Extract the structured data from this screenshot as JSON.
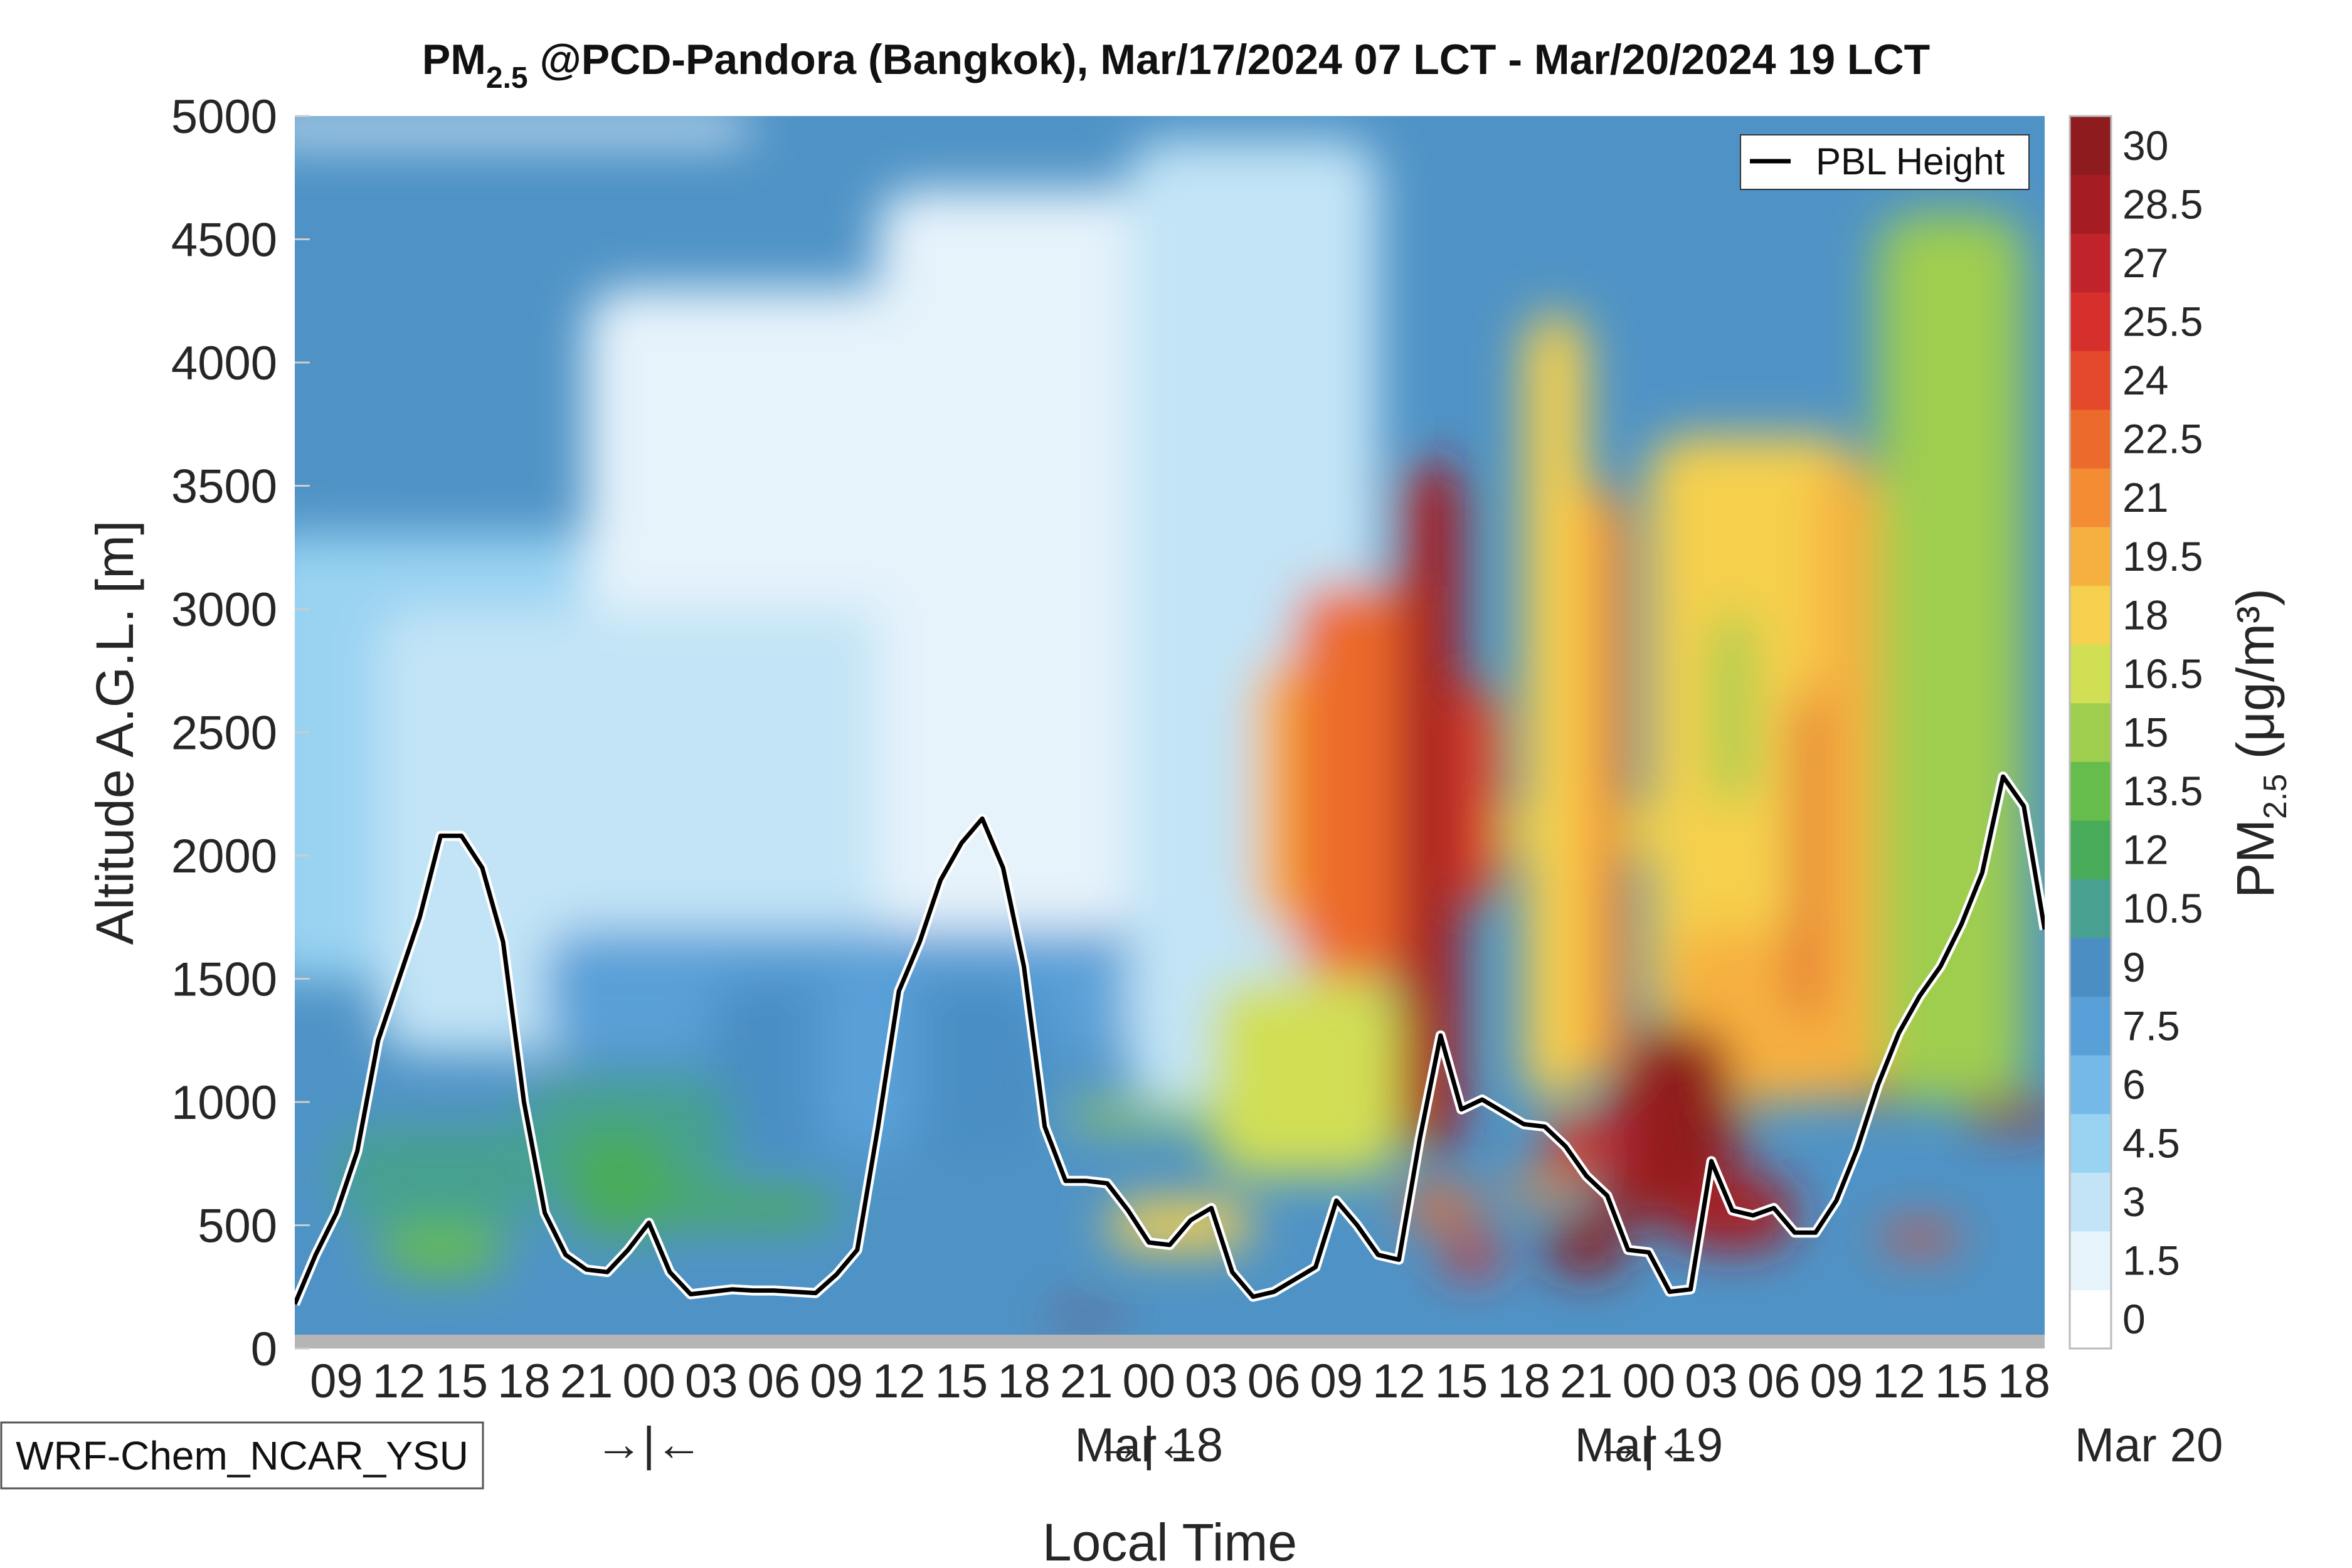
{
  "chart_data": {
    "type": "heatmap",
    "title_parts": {
      "prefix": "PM",
      "sub": "2.5",
      "rest": " @PCD-Pandora (Bangkok), Mar/17/2024 07 LCT - Mar/20/2024 19 LCT"
    },
    "xlabel": "Local Time",
    "ylabel": "Altitude A.G.L. [m]",
    "ylim": [
      0,
      5000
    ],
    "y_ticks": [
      "0",
      "500",
      "1000",
      "1500",
      "2000",
      "2500",
      "3000",
      "3500",
      "4000",
      "4500",
      "5000"
    ],
    "x_range_hours": [
      0,
      84
    ],
    "hour_tick_labels": [
      "09",
      "12",
      "15",
      "18",
      "21",
      "00",
      "03",
      "06",
      "09",
      "12",
      "15",
      "18",
      "21",
      "00",
      "03",
      "06",
      "09",
      "12",
      "15",
      "18",
      "21",
      "00",
      "03",
      "06",
      "09",
      "12",
      "15",
      "18"
    ],
    "day_labels": [
      {
        "text": "Mar 18",
        "hour": 41
      },
      {
        "text": "Mar 19",
        "hour": 65
      },
      {
        "text": "Mar 20",
        "hour": 89
      }
    ],
    "day_separators": [
      {
        "text": "→|←",
        "hour": 17
      },
      {
        "text": "→|←",
        "hour": 41
      },
      {
        "text": "→|←",
        "hour": 65
      }
    ],
    "colorbar": {
      "label_parts": {
        "prefix": "PM",
        "sub": "2.5",
        "units": " (μg/m³)"
      },
      "levels": [
        "0",
        "1.5",
        "3",
        "4.5",
        "6",
        "7.5",
        "9",
        "10.5",
        "12",
        "13.5",
        "15",
        "16.5",
        "18",
        "19.5",
        "21",
        "22.5",
        "24",
        "25.5",
        "27",
        "28.5",
        "30"
      ],
      "colors": [
        "#ffffff",
        "#e6f3fb",
        "#c2e4f6",
        "#99d3f2",
        "#74b9e8",
        "#5aa0d8",
        "#4a8ec4",
        "#47a090",
        "#48ab5a",
        "#66bd4b",
        "#9fce4f",
        "#d1df55",
        "#f6d04e",
        "#f6b040",
        "#f48c34",
        "#ec6a2c",
        "#e4492b",
        "#d72f2c",
        "#c0242a",
        "#a51d22",
        "#8e1b1e"
      ]
    },
    "series": [
      {
        "name": "PBL Height",
        "hours": [
          0,
          1,
          2,
          3,
          4,
          5,
          6,
          7,
          8,
          9,
          10,
          11,
          12,
          13,
          14,
          15,
          16,
          17,
          18,
          19,
          20,
          21,
          22,
          23,
          24,
          25,
          26,
          27,
          28,
          29,
          30,
          31,
          32,
          33,
          34,
          35,
          36,
          37,
          38,
          39,
          40,
          41,
          42,
          43,
          44,
          45,
          46,
          47,
          48,
          49,
          50,
          51,
          52,
          53,
          54,
          55,
          56,
          57,
          58,
          59,
          60,
          61,
          62,
          63,
          64,
          65,
          66,
          67,
          68,
          69,
          70,
          71,
          72,
          73,
          74,
          75,
          76,
          77,
          78,
          79,
          80,
          81,
          82,
          83,
          84
        ],
        "values": [
          180,
          380,
          550,
          800,
          1250,
          1500,
          1750,
          2080,
          2080,
          1950,
          1650,
          1000,
          550,
          380,
          320,
          310,
          400,
          510,
          310,
          220,
          230,
          240,
          235,
          235,
          230,
          225,
          300,
          400,
          900,
          1450,
          1650,
          1900,
          2050,
          2150,
          1950,
          1550,
          900,
          680,
          680,
          670,
          560,
          430,
          420,
          520,
          570,
          310,
          210,
          230,
          280,
          330,
          600,
          500,
          380,
          360,
          850,
          1270,
          970,
          1010,
          960,
          910,
          900,
          820,
          700,
          620,
          400,
          390,
          230,
          240,
          760,
          560,
          540,
          570,
          470,
          470,
          600,
          810,
          1070,
          1280,
          1430,
          1550,
          1720,
          1930,
          2320,
          2200,
          1700
        ]
      }
    ],
    "legend": {
      "label": "PBL Height",
      "location": "top-right"
    },
    "model_label": "WRF-Chem_NCAR_YSU"
  }
}
